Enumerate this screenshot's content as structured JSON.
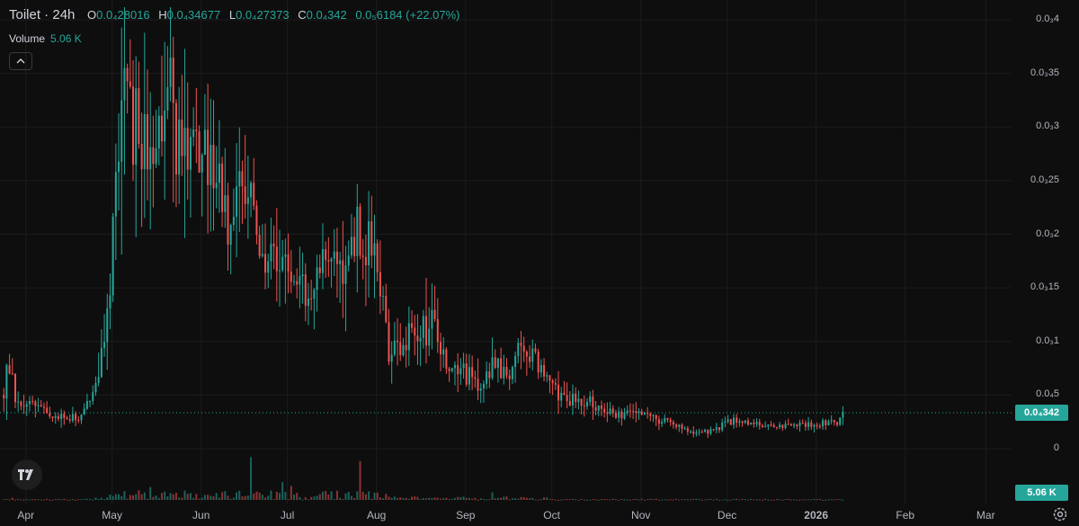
{
  "legend": {
    "symbol": "Toilet · 24h",
    "open_label": "O",
    "open": "0.0₄28016",
    "high_label": "H",
    "high": "0.0₄34677",
    "low_label": "L",
    "low": "0.0₄27373",
    "close_label": "C",
    "close": "0.0₄342",
    "change": "0.0₅6184 (+22.07%)"
  },
  "volume": {
    "label": "Volume",
    "value": "5.06 K"
  },
  "badges": {
    "price": "0.0₄342",
    "volume": "5.06 K"
  },
  "colors": {
    "up": "#26a69a",
    "down": "#ef5350",
    "background": "#0e0e0e",
    "grid": "#1c1c1c"
  },
  "icons": {
    "collapse": "chevron-up-icon",
    "logo": "tradingview-logo-icon",
    "settings": "gear-icon"
  },
  "chart_data": {
    "type": "candlestick",
    "title": "Toilet · 24h",
    "y_axis": {
      "ticks": [
        {
          "label": "0.0₃4",
          "value": 0.0004
        },
        {
          "label": "0.0₃35",
          "value": 0.00035
        },
        {
          "label": "0.0₃3",
          "value": 0.0003
        },
        {
          "label": "0.0₃25",
          "value": 0.00025
        },
        {
          "label": "0.0₃2",
          "value": 0.0002
        },
        {
          "label": "0.0₃15",
          "value": 0.00015
        },
        {
          "label": "0.0₃1",
          "value": 0.0001
        },
        {
          "label": "0.0₄5",
          "value": 5e-05
        },
        {
          "label": "0",
          "value": 0
        }
      ],
      "range": [
        0,
        0.0004
      ],
      "current_value": 3.42e-05
    },
    "x_axis": {
      "labels": [
        "Apr",
        "May",
        "Jun",
        "Jul",
        "Aug",
        "Sep",
        "Oct",
        "Nov",
        "Dec",
        "2026",
        "Feb",
        "Mar"
      ],
      "start": "2025-03-23",
      "end": "2026-03-10",
      "label_dates": [
        "2025-04-01",
        "2025-05-01",
        "2025-06-01",
        "2025-07-01",
        "2025-08-01",
        "2025-09-01",
        "2025-10-01",
        "2025-11-01",
        "2025-12-01",
        "2026-01-01",
        "2026-02-01",
        "2026-03-01"
      ]
    },
    "price_path": [
      [
        "2025-03-24",
        5e-05
      ],
      [
        "2025-03-26",
        8.5e-05
      ],
      [
        "2025-03-28",
        4e-05
      ],
      [
        "2025-04-05",
        4.5e-05
      ],
      [
        "2025-04-10",
        3e-05
      ],
      [
        "2025-04-20",
        2.8e-05
      ],
      [
        "2025-04-25",
        6e-05
      ],
      [
        "2025-04-30",
        0.00015
      ],
      [
        "2025-05-03",
        0.0003
      ],
      [
        "2025-05-06",
        0.00033
      ],
      [
        "2025-05-10",
        0.00028
      ],
      [
        "2025-05-15",
        0.00025
      ],
      [
        "2025-05-20",
        0.00031
      ],
      [
        "2025-05-25",
        0.0003
      ],
      [
        "2025-05-30",
        0.00029
      ],
      [
        "2025-06-05",
        0.00025
      ],
      [
        "2025-06-10",
        0.00022
      ],
      [
        "2025-06-15",
        0.00025
      ],
      [
        "2025-06-20",
        0.0002
      ],
      [
        "2025-06-25",
        0.00018
      ],
      [
        "2025-07-01",
        0.00017
      ],
      [
        "2025-07-08",
        0.00014
      ],
      [
        "2025-07-12",
        0.00018
      ],
      [
        "2025-07-20",
        0.00015
      ],
      [
        "2025-07-25",
        0.00021
      ],
      [
        "2025-08-01",
        0.00018
      ],
      [
        "2025-08-05",
        9e-05
      ],
      [
        "2025-08-10",
        0.0001
      ],
      [
        "2025-08-15",
        0.00011
      ],
      [
        "2025-08-20",
        0.00012
      ],
      [
        "2025-08-25",
        8e-05
      ],
      [
        "2025-09-01",
        7e-05
      ],
      [
        "2025-09-05",
        6e-05
      ],
      [
        "2025-09-10",
        7.5e-05
      ],
      [
        "2025-09-15",
        7e-05
      ],
      [
        "2025-09-20",
        0.0001
      ],
      [
        "2025-09-25",
        8e-05
      ],
      [
        "2025-10-01",
        5.5e-05
      ],
      [
        "2025-10-10",
        4.5e-05
      ],
      [
        "2025-10-20",
        3.5e-05
      ],
      [
        "2025-10-25",
        3.3e-05
      ],
      [
        "2025-11-01",
        3.2e-05
      ],
      [
        "2025-11-10",
        2.5e-05
      ],
      [
        "2025-11-20",
        1.5e-05
      ],
      [
        "2025-11-25",
        1.6e-05
      ],
      [
        "2025-12-01",
        2.5e-05
      ],
      [
        "2025-12-10",
        2.2e-05
      ],
      [
        "2025-12-20",
        2.1e-05
      ],
      [
        "2026-01-01",
        2.2e-05
      ],
      [
        "2026-01-08",
        2.5e-05
      ],
      [
        "2026-01-10",
        3.42e-05
      ]
    ],
    "volume": {
      "current": 5060
    }
  }
}
